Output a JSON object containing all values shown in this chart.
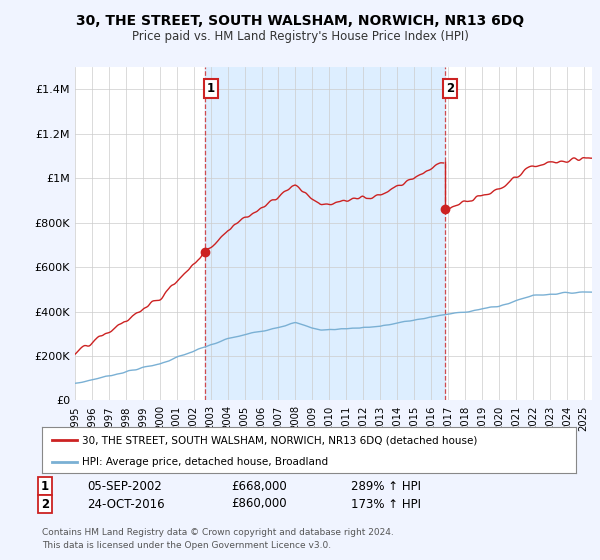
{
  "title": "30, THE STREET, SOUTH WALSHAM, NORWICH, NR13 6DQ",
  "subtitle": "Price paid vs. HM Land Registry's House Price Index (HPI)",
  "line1_label": "30, THE STREET, SOUTH WALSHAM, NORWICH, NR13 6DQ (detached house)",
  "line2_label": "HPI: Average price, detached house, Broadland",
  "line1_color": "#cc2222",
  "line2_color": "#7ab0d4",
  "shade_color": "#ddeeff",
  "annotation1": {
    "label": "1",
    "date": "05-SEP-2002",
    "price": "£668,000",
    "hpi": "289% ↑ HPI"
  },
  "annotation2": {
    "label": "2",
    "date": "24-OCT-2016",
    "price": "£860,000",
    "hpi": "173% ↑ HPI"
  },
  "footer": "Contains HM Land Registry data © Crown copyright and database right 2024.\nThis data is licensed under the Open Government Licence v3.0.",
  "ylim": [
    0,
    1500000
  ],
  "yticks": [
    0,
    200000,
    400000,
    600000,
    800000,
    1000000,
    1200000,
    1400000
  ],
  "ytick_labels": [
    "£0",
    "£200K",
    "£400K",
    "£600K",
    "£800K",
    "£1M",
    "£1.2M",
    "£1.4M"
  ],
  "background_color": "#f0f4ff",
  "plot_bg": "#ffffff",
  "grid_color": "#cccccc",
  "t1": 2002.67,
  "t2": 2016.79,
  "price1": 668000,
  "price2": 860000,
  "xlim_start": 1995.0,
  "xlim_end": 2025.5
}
